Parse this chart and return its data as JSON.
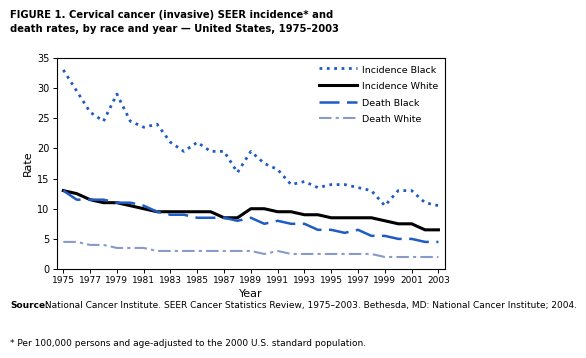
{
  "title_line1": "FIGURE 1. Cervical cancer (invasive) SEER incidence* and",
  "title_line2": "death rates, by race and year — United States, 1975–2003",
  "xlabel": "Year",
  "ylabel": "Rate",
  "years": [
    1975,
    1976,
    1977,
    1978,
    1979,
    1980,
    1981,
    1982,
    1983,
    1984,
    1985,
    1986,
    1987,
    1988,
    1989,
    1990,
    1991,
    1992,
    1993,
    1994,
    1995,
    1996,
    1997,
    1998,
    1999,
    2000,
    2001,
    2002,
    2003
  ],
  "incidence_black": [
    33.0,
    29.5,
    26.0,
    24.5,
    29.0,
    24.5,
    23.5,
    24.0,
    21.0,
    19.5,
    21.0,
    19.5,
    19.5,
    16.0,
    19.5,
    17.5,
    16.5,
    14.0,
    14.5,
    13.5,
    14.0,
    14.0,
    13.5,
    13.0,
    10.5,
    13.0,
    13.0,
    11.0,
    10.5
  ],
  "incidence_white": [
    13.0,
    12.5,
    11.5,
    11.0,
    11.0,
    10.5,
    10.0,
    9.5,
    9.5,
    9.5,
    9.5,
    9.5,
    8.5,
    8.5,
    10.0,
    10.0,
    9.5,
    9.5,
    9.0,
    9.0,
    8.5,
    8.5,
    8.5,
    8.5,
    8.0,
    7.5,
    7.5,
    6.5,
    6.5
  ],
  "death_black": [
    13.0,
    11.5,
    11.5,
    11.5,
    11.0,
    11.0,
    10.5,
    9.5,
    9.0,
    9.0,
    8.5,
    8.5,
    8.5,
    8.0,
    8.5,
    7.5,
    8.0,
    7.5,
    7.5,
    6.5,
    6.5,
    6.0,
    6.5,
    5.5,
    5.5,
    5.0,
    5.0,
    4.5,
    4.5
  ],
  "death_white": [
    4.5,
    4.5,
    4.0,
    4.0,
    3.5,
    3.5,
    3.5,
    3.0,
    3.0,
    3.0,
    3.0,
    3.0,
    3.0,
    3.0,
    3.0,
    2.5,
    3.0,
    2.5,
    2.5,
    2.5,
    2.5,
    2.5,
    2.5,
    2.5,
    2.0,
    2.0,
    2.0,
    2.0,
    2.0
  ],
  "incidence_black_color": "#1f5bc4",
  "incidence_white_color": "#000000",
  "death_black_color": "#1f5bc4",
  "death_white_color": "#8899cc",
  "yticks": [
    0,
    5,
    10,
    15,
    20,
    25,
    30,
    35
  ],
  "ylim": [
    0,
    35
  ],
  "xlim": [
    1974.5,
    2003.5
  ],
  "source_bold": "Source:",
  "source_rest": " National Cancer Institute. SEER Cancer Statistics Review, 1975–2003. Bethesda, MD: National Cancer Institute; 2004.",
  "footnote": "* Per 100,000 persons and age-adjusted to the 2000 U.S. standard population."
}
